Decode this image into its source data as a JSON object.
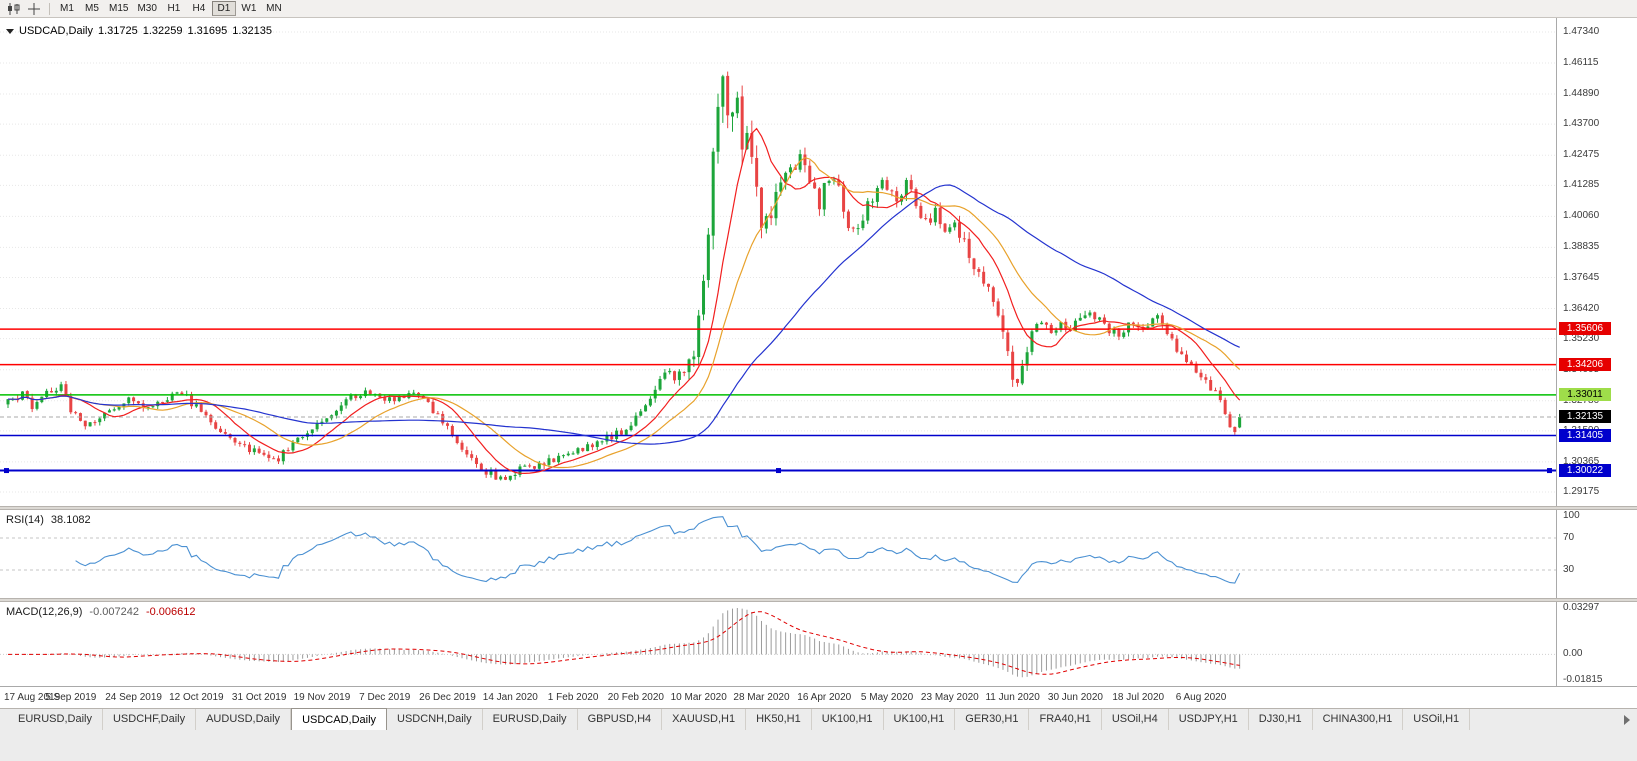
{
  "toolbar": {
    "timeframes": [
      "M1",
      "M5",
      "M15",
      "M30",
      "H1",
      "H4",
      "D1",
      "W1",
      "MN"
    ],
    "active_timeframe": "D1"
  },
  "chart": {
    "header": {
      "symbol": "USDCAD,Daily",
      "open": "1.31725",
      "high": "1.32259",
      "low": "1.31695",
      "close": "1.32135"
    }
  },
  "rsi_panel": {
    "label": "RSI(14)",
    "value": "38.1082",
    "axis_ticks": [
      {
        "label": "100",
        "value": 100
      },
      {
        "label": "70",
        "value": 70
      },
      {
        "label": "30",
        "value": 30
      }
    ],
    "level_lines": [
      70,
      30
    ]
  },
  "macd_panel": {
    "label": "MACD(12,26,9)",
    "main_value": "-0.007242",
    "signal_value": "-0.006612",
    "axis_ticks": [
      {
        "label": "0.03297",
        "value": 0.03297
      },
      {
        "label": "0.00",
        "value": 0
      },
      {
        "label": "-0.01815",
        "value": -0.01815
      }
    ]
  },
  "tabs": {
    "items": [
      {
        "label": "EURUSD,Daily",
        "active": false
      },
      {
        "label": "USDCHF,Daily",
        "active": false
      },
      {
        "label": "AUDUSD,Daily",
        "active": false
      },
      {
        "label": "USDCAD,Daily",
        "active": true
      },
      {
        "label": "USDCNH,Daily",
        "active": false
      },
      {
        "label": "EURUSD,Daily",
        "active": false
      },
      {
        "label": "GBPUSD,H4",
        "active": false
      },
      {
        "label": "XAUUSD,H1",
        "active": false
      },
      {
        "label": "HK50,H1",
        "active": false
      },
      {
        "label": "UK100,H1",
        "active": false
      },
      {
        "label": "UK100,H1",
        "active": false
      },
      {
        "label": "GER30,H1",
        "active": false
      },
      {
        "label": "FRA40,H1",
        "active": false
      },
      {
        "label": "USOil,H4",
        "active": false
      },
      {
        "label": "USDJPY,H1",
        "active": false
      },
      {
        "label": "DJ30,H1",
        "active": false
      },
      {
        "label": "CHINA300,H1",
        "active": false
      },
      {
        "label": "USOil,H1",
        "active": false
      }
    ]
  },
  "chart_data": {
    "type": "candlestick",
    "symbol": "USDCAD",
    "timeframe": "Daily",
    "title": "USDCAD,Daily",
    "bars": 256,
    "last_bar": {
      "open": 1.31725,
      "high": 1.32259,
      "low": 1.31695,
      "close": 1.32135
    },
    "current_price": {
      "label": "1.32135",
      "price": 1.32135,
      "badge_bg": "#000000",
      "badge_text": "#ffffff"
    },
    "y_axis_ticks": [
      "1.47340",
      "1.46115",
      "1.44890",
      "1.43700",
      "1.42475",
      "1.41285",
      "1.40060",
      "1.38835",
      "1.37645",
      "1.36420",
      "1.35230",
      "1.34005",
      "1.32780",
      "1.31590",
      "1.30365",
      "1.29175"
    ],
    "x_tick_labels": [
      "17 Aug 2019",
      "5 Sep 2019",
      "24 Sep 2019",
      "12 Oct 2019",
      "31 Oct 2019",
      "19 Nov 2019",
      "7 Dec 2019",
      "26 Dec 2019",
      "14 Jan 2020",
      "1 Feb 2020",
      "20 Feb 2020",
      "10 Mar 2020",
      "28 Mar 2020",
      "16 Apr 2020",
      "5 May 2020",
      "23 May 2020",
      "11 Jun 2020",
      "30 Jun 2020",
      "18 Jul 2020",
      "6 Aug 2020"
    ],
    "x_ticks_every_bars": 13,
    "horizontal_levels": [
      {
        "label": "1.35606",
        "price": 1.35606,
        "line_color": "#ff0000",
        "badge_bg": "#e60000",
        "badge_text": "#ffffff",
        "width": 1.5
      },
      {
        "label": "1.34206",
        "price": 1.34206,
        "line_color": "#ff0000",
        "badge_bg": "#e60000",
        "badge_text": "#ffffff",
        "width": 1.5
      },
      {
        "label": "1.33011",
        "price": 1.33011,
        "line_color": "#00c000",
        "badge_bg": "#9fdd4a",
        "badge_text": "#000000",
        "width": 1.5
      },
      {
        "label": "1.31405",
        "price": 1.31405,
        "line_color": "#0000cc",
        "badge_bg": "#0000cc",
        "badge_text": "#ffffff",
        "width": 1.5
      },
      {
        "label": "1.30022",
        "price": 1.30022,
        "line_color": "#0000cc",
        "badge_bg": "#0000cc",
        "badge_text": "#ffffff",
        "width": 2,
        "selected": true
      }
    ],
    "up_color": "#1ca53a",
    "down_color": "#e84444",
    "moving_averages": [
      {
        "period": 10,
        "color": "#f21f1f"
      },
      {
        "period": 20,
        "color": "#e8a22c"
      },
      {
        "period": 50,
        "color": "#2433cf"
      }
    ],
    "rsi": {
      "period": 14,
      "color": "#4a90d2",
      "last": 38.1082
    },
    "macd": {
      "fast": 12,
      "slow": 26,
      "signal": 9,
      "hist_color": "#9b9b9b",
      "signal_color": "#e00000",
      "last_main": -0.007242,
      "last_signal": -0.006612
    },
    "price_path_anchors": [
      [
        0,
        1.327
      ],
      [
        3,
        1.33
      ],
      [
        5,
        1.326
      ],
      [
        8,
        1.3315
      ],
      [
        11,
        1.3335
      ],
      [
        13,
        1.3245
      ],
      [
        16,
        1.3185
      ],
      [
        19,
        1.321
      ],
      [
        22,
        1.325
      ],
      [
        26,
        1.329
      ],
      [
        29,
        1.3245
      ],
      [
        32,
        1.328
      ],
      [
        35,
        1.3325
      ],
      [
        38,
        1.327
      ],
      [
        41,
        1.3215
      ],
      [
        44,
        1.316
      ],
      [
        47,
        1.3125
      ],
      [
        50,
        1.309
      ],
      [
        53,
        1.306
      ],
      [
        56,
        1.3048
      ],
      [
        59,
        1.311
      ],
      [
        62,
        1.316
      ],
      [
        65,
        1.32
      ],
      [
        68,
        1.3245
      ],
      [
        71,
        1.3295
      ],
      [
        74,
        1.3315
      ],
      [
        77,
        1.3298
      ],
      [
        80,
        1.3275
      ],
      [
        83,
        1.3305
      ],
      [
        86,
        1.3285
      ],
      [
        89,
        1.3215
      ],
      [
        92,
        1.3145
      ],
      [
        95,
        1.3075
      ],
      [
        98,
        1.3015
      ],
      [
        101,
        1.2968
      ],
      [
        104,
        1.299
      ],
      [
        107,
        1.3008
      ],
      [
        110,
        1.3032
      ],
      [
        113,
        1.3048
      ],
      [
        116,
        1.3068
      ],
      [
        119,
        1.3092
      ],
      [
        122,
        1.3115
      ],
      [
        125,
        1.314
      ],
      [
        128,
        1.3165
      ],
      [
        131,
        1.3235
      ],
      [
        134,
        1.333
      ],
      [
        136,
        1.34
      ],
      [
        138,
        1.3372
      ],
      [
        140,
        1.34
      ],
      [
        142,
        1.3455
      ],
      [
        144,
        1.372
      ],
      [
        145,
        1.393
      ],
      [
        146,
        1.42
      ],
      [
        147,
        1.448
      ],
      [
        148,
        1.46
      ],
      [
        149,
        1.443
      ],
      [
        150,
        1.448
      ],
      [
        151,
        1.445
      ],
      [
        152,
        1.425
      ],
      [
        153,
        1.438
      ],
      [
        154,
        1.421
      ],
      [
        155,
        1.407
      ],
      [
        156,
        1.3995
      ],
      [
        158,
        1.4025
      ],
      [
        160,
        1.4105
      ],
      [
        162,
        1.418
      ],
      [
        164,
        1.4235
      ],
      [
        166,
        1.4145
      ],
      [
        168,
        1.406
      ],
      [
        170,
        1.4165
      ],
      [
        172,
        1.4105
      ],
      [
        174,
        1.3975
      ],
      [
        176,
        1.3945
      ],
      [
        178,
        1.4055
      ],
      [
        180,
        1.4115
      ],
      [
        182,
        1.4135
      ],
      [
        184,
        1.4085
      ],
      [
        186,
        1.414
      ],
      [
        188,
        1.4055
      ],
      [
        190,
        1.3985
      ],
      [
        192,
        1.4015
      ],
      [
        194,
        1.3955
      ],
      [
        196,
        1.3975
      ],
      [
        198,
        1.3895
      ],
      [
        200,
        1.3805
      ],
      [
        202,
        1.3745
      ],
      [
        204,
        1.3685
      ],
      [
        206,
        1.3545
      ],
      [
        207,
        1.3465
      ],
      [
        208,
        1.3395
      ],
      [
        209,
        1.3365
      ],
      [
        210,
        1.3445
      ],
      [
        212,
        1.3545
      ],
      [
        214,
        1.3575
      ],
      [
        216,
        1.3545
      ],
      [
        218,
        1.3595
      ],
      [
        220,
        1.3565
      ],
      [
        222,
        1.3605
      ],
      [
        224,
        1.3635
      ],
      [
        226,
        1.3595
      ],
      [
        228,
        1.3555
      ],
      [
        230,
        1.3535
      ],
      [
        232,
        1.3595
      ],
      [
        234,
        1.3555
      ],
      [
        236,
        1.3575
      ],
      [
        238,
        1.3605
      ],
      [
        240,
        1.3545
      ],
      [
        242,
        1.3475
      ],
      [
        244,
        1.3435
      ],
      [
        246,
        1.3405
      ],
      [
        248,
        1.3365
      ],
      [
        250,
        1.3305
      ],
      [
        252,
        1.3225
      ],
      [
        253,
        1.3175
      ],
      [
        254,
        1.314
      ],
      [
        255,
        1.32135
      ]
    ],
    "volatility_anchors": [
      [
        0,
        0.0045
      ],
      [
        40,
        0.0045
      ],
      [
        60,
        0.004
      ],
      [
        90,
        0.004
      ],
      [
        101,
        0.005
      ],
      [
        120,
        0.0038
      ],
      [
        135,
        0.005
      ],
      [
        142,
        0.009
      ],
      [
        146,
        0.02
      ],
      [
        150,
        0.022
      ],
      [
        154,
        0.017
      ],
      [
        158,
        0.012
      ],
      [
        164,
        0.009
      ],
      [
        175,
        0.008
      ],
      [
        190,
        0.007
      ],
      [
        204,
        0.008
      ],
      [
        208,
        0.011
      ],
      [
        214,
        0.006
      ],
      [
        235,
        0.005
      ],
      [
        248,
        0.005
      ],
      [
        255,
        0.0045
      ]
    ]
  }
}
